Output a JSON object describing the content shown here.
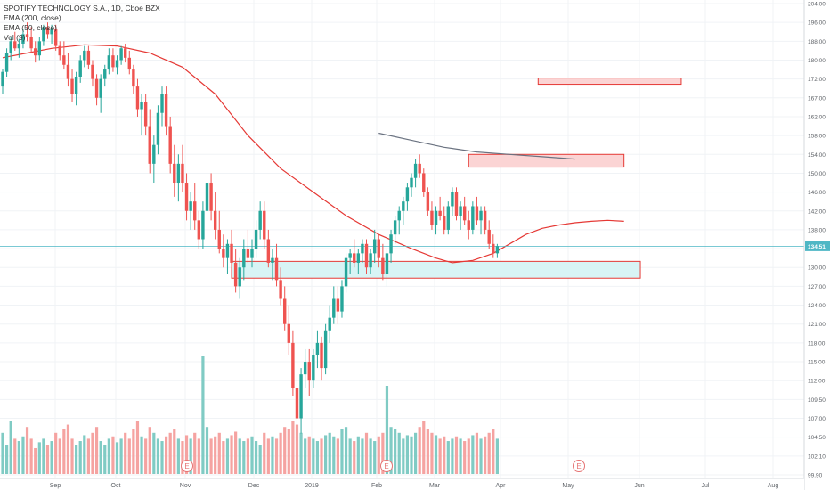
{
  "legend": {
    "title": "SPOTIFY TECHNOLOGY S.A., 1D, Cboe BZX",
    "ema200": "EMA (200, close)",
    "ema50": "EMA (50, close)",
    "vol": "Vol (9)"
  },
  "colors": {
    "up": "#26a69a",
    "down": "#ef5350",
    "vol_up": "#80cbc4",
    "vol_down": "#f5a3a1",
    "ema50": "#e53935",
    "ema200": "#6a7280",
    "price_line": "#4fb7c5",
    "zone_red_fill": "#fbd4d4",
    "zone_red_stroke": "#e53935",
    "zone_cyan_fill": "#d8f4f5",
    "zone_cyan_stroke": "#e53935"
  },
  "chart_data": {
    "type": "candlestick",
    "symbol": "SPOTIFY TECHNOLOGY S.A.",
    "timeframe": "1D",
    "exchange": "Cboe BZX",
    "y_ticks": [
      99.9,
      102.1,
      104.5,
      107.0,
      109.5,
      112.0,
      115.0,
      118.0,
      121.0,
      124.0,
      127.0,
      130.0,
      134.0,
      138.0,
      142.0,
      146.0,
      150.0,
      154.0,
      158.0,
      162.0,
      167.0,
      172.0,
      180.0,
      188.0,
      196.0,
      204.0
    ],
    "x_labels": [
      "Sep",
      "Oct",
      "Nov",
      "Dec",
      "2019",
      "Feb",
      "Mar",
      "Apr",
      "May",
      "Jun",
      "Jul",
      "Aug"
    ],
    "last_price": "134.51",
    "candles": [
      [
        170,
        176,
        168,
        175
      ],
      [
        175,
        185,
        173,
        183
      ],
      [
        183,
        190,
        180,
        188
      ],
      [
        188,
        192,
        184,
        185
      ],
      [
        185,
        189,
        181,
        187
      ],
      [
        187,
        193,
        185,
        191
      ],
      [
        191,
        196,
        188,
        190
      ],
      [
        190,
        194,
        183,
        185
      ],
      [
        185,
        188,
        179,
        182
      ],
      [
        182,
        190,
        180,
        188
      ],
      [
        188,
        195,
        186,
        194
      ],
      [
        194,
        196,
        189,
        191
      ],
      [
        191,
        195,
        187,
        193
      ],
      [
        193,
        195,
        184,
        186
      ],
      [
        186,
        188,
        180,
        182
      ],
      [
        182,
        188,
        176,
        178
      ],
      [
        178,
        183,
        170,
        172
      ],
      [
        172,
        176,
        166,
        168
      ],
      [
        168,
        175,
        165,
        173
      ],
      [
        173,
        182,
        171,
        180
      ],
      [
        180,
        186,
        177,
        184
      ],
      [
        184,
        186,
        176,
        178
      ],
      [
        178,
        180,
        170,
        172
      ],
      [
        172,
        174,
        165,
        167
      ],
      [
        167,
        174,
        163,
        172
      ],
      [
        172,
        178,
        170,
        176
      ],
      [
        176,
        185,
        174,
        182
      ],
      [
        182,
        185,
        175,
        177
      ],
      [
        177,
        182,
        174,
        180
      ],
      [
        180,
        186,
        178,
        185
      ],
      [
        185,
        187,
        179,
        181
      ],
      [
        181,
        184,
        174,
        176
      ],
      [
        176,
        178,
        168,
        170
      ],
      [
        170,
        172,
        162,
        164
      ],
      [
        164,
        168,
        158,
        166
      ],
      [
        166,
        168,
        158,
        160
      ],
      [
        160,
        164,
        150,
        152
      ],
      [
        152,
        158,
        148,
        156
      ],
      [
        156,
        165,
        154,
        163
      ],
      [
        163,
        170,
        160,
        168
      ],
      [
        168,
        170,
        158,
        160
      ],
      [
        160,
        162,
        150,
        152
      ],
      [
        152,
        156,
        145,
        148
      ],
      [
        148,
        154,
        144,
        152
      ],
      [
        152,
        156,
        146,
        148
      ],
      [
        148,
        150,
        140,
        142
      ],
      [
        142,
        146,
        138,
        144
      ],
      [
        144,
        148,
        138,
        140
      ],
      [
        140,
        142,
        134,
        136
      ],
      [
        136,
        144,
        134,
        142
      ],
      [
        142,
        150,
        140,
        148
      ],
      [
        148,
        150,
        140,
        142
      ],
      [
        142,
        146,
        136,
        138
      ],
      [
        138,
        142,
        133,
        134
      ],
      [
        134,
        137,
        130,
        132
      ],
      [
        132,
        136,
        129,
        135
      ],
      [
        135,
        138,
        130,
        131
      ],
      [
        131,
        134,
        126,
        127
      ],
      [
        127,
        132,
        125,
        130
      ],
      [
        130,
        136,
        128,
        134
      ],
      [
        134,
        138,
        131,
        132
      ],
      [
        132,
        136,
        130,
        134
      ],
      [
        134,
        140,
        132,
        138
      ],
      [
        138,
        144,
        136,
        142
      ],
      [
        142,
        144,
        134,
        136
      ],
      [
        136,
        138,
        130,
        131
      ],
      [
        131,
        134,
        128,
        132
      ],
      [
        132,
        135,
        127,
        128
      ],
      [
        128,
        130,
        124,
        125
      ],
      [
        125,
        127,
        120,
        121
      ],
      [
        121,
        124,
        116,
        118
      ],
      [
        118,
        120,
        110,
        111
      ],
      [
        111,
        113,
        104,
        107
      ],
      [
        107,
        114,
        105,
        113
      ],
      [
        113,
        117,
        111,
        115
      ],
      [
        115,
        117,
        110,
        112
      ],
      [
        112,
        117,
        111,
        116
      ],
      [
        116,
        120,
        114,
        118
      ],
      [
        118,
        119,
        112,
        114
      ],
      [
        114,
        121,
        113,
        120
      ],
      [
        120,
        124,
        118,
        122
      ],
      [
        122,
        127,
        121,
        125
      ],
      [
        125,
        127,
        121,
        123
      ],
      [
        123,
        128,
        122,
        127
      ],
      [
        127,
        133,
        126,
        132
      ],
      [
        132,
        134,
        129,
        133
      ],
      [
        133,
        136,
        130,
        131
      ],
      [
        131,
        134,
        129,
        133
      ],
      [
        133,
        136,
        131,
        135
      ],
      [
        135,
        136,
        129,
        130
      ],
      [
        130,
        134,
        129,
        133
      ],
      [
        133,
        138,
        131,
        136
      ],
      [
        136,
        137,
        130,
        132
      ],
      [
        132,
        135,
        128,
        129
      ],
      [
        129,
        134,
        127,
        133
      ],
      [
        133,
        138,
        131,
        137
      ],
      [
        137,
        141,
        135,
        140
      ],
      [
        140,
        143,
        137,
        142
      ],
      [
        142,
        145,
        139,
        144
      ],
      [
        144,
        148,
        142,
        147
      ],
      [
        147,
        150,
        145,
        149
      ],
      [
        149,
        153,
        147,
        152
      ],
      [
        152,
        154,
        149,
        150
      ],
      [
        150,
        151,
        145,
        146
      ],
      [
        146,
        147,
        141,
        142
      ],
      [
        142,
        144,
        138,
        139
      ],
      [
        139,
        143,
        137,
        142
      ],
      [
        142,
        145,
        140,
        141
      ],
      [
        141,
        143,
        137,
        138
      ],
      [
        138,
        144,
        137,
        143
      ],
      [
        143,
        147,
        141,
        146
      ],
      [
        146,
        147,
        140,
        141
      ],
      [
        141,
        144,
        138,
        143
      ],
      [
        143,
        145,
        139,
        140
      ],
      [
        140,
        142,
        136,
        138
      ],
      [
        138,
        144,
        137,
        143
      ],
      [
        143,
        145,
        139,
        140
      ],
      [
        140,
        143,
        137,
        142
      ],
      [
        142,
        143,
        137,
        138
      ],
      [
        138,
        140,
        134,
        135
      ],
      [
        135,
        137,
        132,
        133
      ],
      [
        133,
        135,
        132,
        134.51
      ]
    ],
    "volumes": [
      0.35,
      0.25,
      0.45,
      0.3,
      0.28,
      0.32,
      0.4,
      0.3,
      0.22,
      0.27,
      0.3,
      0.25,
      0.28,
      0.35,
      0.3,
      0.38,
      0.42,
      0.3,
      0.25,
      0.28,
      0.33,
      0.3,
      0.35,
      0.4,
      0.28,
      0.25,
      0.3,
      0.32,
      0.27,
      0.3,
      0.35,
      0.3,
      0.38,
      0.45,
      0.32,
      0.3,
      0.4,
      0.35,
      0.3,
      0.28,
      0.32,
      0.35,
      0.38,
      0.3,
      0.28,
      0.33,
      0.3,
      0.35,
      0.3,
      1.0,
      0.4,
      0.3,
      0.32,
      0.35,
      0.28,
      0.3,
      0.33,
      0.36,
      0.3,
      0.28,
      0.3,
      0.32,
      0.28,
      0.25,
      0.35,
      0.3,
      0.32,
      0.3,
      0.35,
      0.4,
      0.38,
      0.45,
      0.42,
      0.35,
      0.3,
      0.32,
      0.3,
      0.28,
      0.3,
      0.33,
      0.35,
      0.32,
      0.3,
      0.38,
      0.4,
      0.3,
      0.28,
      0.32,
      0.3,
      0.35,
      0.3,
      0.28,
      0.32,
      0.35,
      0.75,
      0.4,
      0.38,
      0.35,
      0.3,
      0.33,
      0.32,
      0.35,
      0.4,
      0.45,
      0.38,
      0.35,
      0.33,
      0.3,
      0.32,
      0.28,
      0.3,
      0.32,
      0.3,
      0.28,
      0.3,
      0.33,
      0.35,
      0.3,
      0.32,
      0.35,
      0.38,
      0.3
    ],
    "ema50": [
      [
        0,
        181
      ],
      [
        6,
        183
      ],
      [
        12,
        185
      ],
      [
        20,
        186.5
      ],
      [
        28,
        186
      ],
      [
        36,
        183
      ],
      [
        44,
        177
      ],
      [
        52,
        168
      ],
      [
        60,
        158
      ],
      [
        68,
        151
      ],
      [
        76,
        146
      ],
      [
        84,
        141
      ],
      [
        92,
        137
      ],
      [
        100,
        134
      ],
      [
        106,
        132
      ],
      [
        110,
        131
      ],
      [
        115,
        131.5
      ],
      [
        120,
        133
      ],
      [
        124,
        135
      ],
      [
        128,
        137
      ],
      [
        132,
        138.3
      ],
      [
        136,
        139
      ],
      [
        140,
        139.5
      ],
      [
        144,
        139.8
      ],
      [
        148,
        140
      ],
      [
        152,
        139.8
      ]
    ],
    "ema200": [
      [
        92,
        158.5
      ],
      [
        100,
        157
      ],
      [
        108,
        155.5
      ],
      [
        116,
        154.5
      ],
      [
        124,
        154
      ],
      [
        132,
        153.5
      ],
      [
        140,
        153
      ]
    ],
    "zones": [
      {
        "color": "red",
        "from_x": 131,
        "to_x": 166,
        "top": 172.4,
        "bottom": 170.6
      },
      {
        "color": "red",
        "from_x": 114,
        "to_x": 152,
        "top": 154.0,
        "bottom": 151.3
      },
      {
        "color": "cyan",
        "from_x": 56,
        "to_x": 156,
        "top": 131.3,
        "bottom": 128.3
      }
    ],
    "earnings_markers": [
      "E",
      "E",
      "E"
    ],
    "x_range": [
      0,
      229
    ],
    "ylim": [
      99.9,
      204
    ]
  }
}
